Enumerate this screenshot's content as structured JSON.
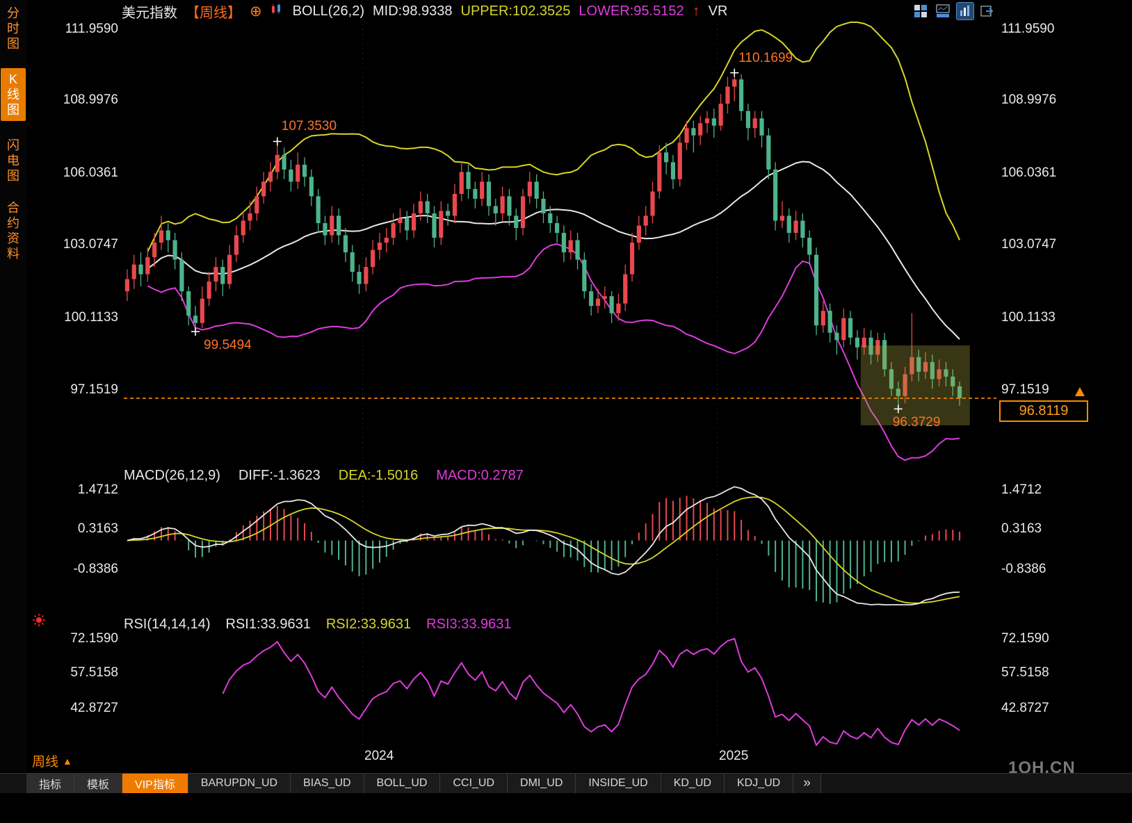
{
  "meta": {
    "watermark": "1QH.CN"
  },
  "icons": {
    "add_indicator": "⊕",
    "trend_up_arrow": "↑",
    "period_triangle": "▲",
    "more_tabs": "»"
  },
  "colors": {
    "up": "#e8484e",
    "down": "#4db38b",
    "boll_upper": "#d6d62a",
    "boll_mid": "#e8e8e8",
    "boll_lower": "#dd3cdd",
    "diff": "#e8e8e8",
    "dea": "#d6d62a",
    "macd_hist_pos": "#e8484e",
    "macd_hist_neg": "#4db38b",
    "rsi3": "#dd3cdd",
    "price_marker": "#ff8a00",
    "annotation": "#ff7426"
  },
  "sidebar": {
    "items": [
      {
        "label": "分时图",
        "active": false
      },
      {
        "label": "K线图",
        "active": true
      },
      {
        "label": "闪电图",
        "active": false
      },
      {
        "label": "合约资料",
        "active": false
      }
    ]
  },
  "header": {
    "symbol": "美元指数",
    "period_tag": "【周线】",
    "indicator": "BOLL(26,2)",
    "mid": "MID:98.9338",
    "upper": "UPPER:102.3525",
    "lower": "LOWER:95.5152",
    "vr": "VR"
  },
  "main_chart": {
    "left_axis": [
      "111.9590",
      "108.9976",
      "106.0361",
      "103.0747",
      "100.1133",
      "97.1519"
    ],
    "right_axis": [
      "111.9590",
      "108.9976",
      "106.0361",
      "103.0747",
      "100.1133",
      "97.1519"
    ],
    "annotations": {
      "last_price": "96.8119"
    },
    "x_labels": [
      "2024",
      "2025"
    ]
  },
  "macd_panel": {
    "title": "MACD(26,12,9)",
    "diff_label": "DIFF:-1.3623",
    "dea_label": "DEA:-1.5016",
    "macd_label": "MACD:0.2787",
    "axis": [
      "1.4712",
      "0.3163",
      "-0.8386"
    ]
  },
  "rsi_panel": {
    "title": "RSI(14,14,14)",
    "rsi1_label": "RSI1:33.9631",
    "rsi2_label": "RSI2:33.9631",
    "rsi3_label": "RSI3:33.9631",
    "axis": [
      "72.1590",
      "57.5158",
      "42.8727"
    ]
  },
  "footer": {
    "period": "周线",
    "tabs": [
      {
        "label": "指标",
        "active": false
      },
      {
        "label": "模板",
        "active": false
      },
      {
        "label": "VIP指标",
        "active": true
      },
      {
        "label": "BARUPDN_UD",
        "active": false
      },
      {
        "label": "BIAS_UD",
        "active": false
      },
      {
        "label": "BOLL_UD",
        "active": false
      },
      {
        "label": "CCI_UD",
        "active": false
      },
      {
        "label": "DMI_UD",
        "active": false
      },
      {
        "label": "INSIDE_UD",
        "active": false
      },
      {
        "label": "KD_UD",
        "active": false
      },
      {
        "label": "KDJ_UD",
        "active": false
      },
      {
        "label": "»",
        "active": false
      }
    ]
  },
  "chart_data": {
    "type": "candlestick",
    "title": "美元指数 周线 (US Dollar Index, weekly)",
    "price_axis": [
      111.959,
      108.9976,
      106.0361,
      103.0747,
      100.1133,
      97.1519
    ],
    "macd_axis": [
      1.4712,
      0.3163,
      -0.8386
    ],
    "rsi_axis": [
      72.159,
      57.5158,
      42.8727
    ],
    "boll": {
      "period": 26,
      "k": 2,
      "mid": 98.9338,
      "upper": 102.3525,
      "lower": 95.5152
    },
    "macd_params": [
      26,
      12,
      9
    ],
    "macd_values": {
      "diff": -1.3623,
      "dea": -1.5016,
      "macd": 0.2787
    },
    "rsi_period": 14,
    "rsi_values": [
      33.9631,
      33.9631,
      33.9631
    ],
    "last_price": 96.8119,
    "x_ticks": [
      {
        "label": "2024",
        "index": 35
      },
      {
        "label": "2025",
        "index": 87
      }
    ],
    "markers": [
      {
        "label": "107.3530",
        "index": 22,
        "price": 107.353,
        "side": "high"
      },
      {
        "label": "110.1699",
        "index": 89,
        "price": 110.1699,
        "side": "high"
      },
      {
        "label": "99.5494",
        "index": 10,
        "price": 99.5494,
        "side": "low"
      },
      {
        "label": "96.3729",
        "index": 113,
        "price": 96.3729,
        "side": "low"
      }
    ],
    "highlight_region": {
      "from_index": 108,
      "to_index": 124,
      "price_top": 98.98,
      "price_bottom": 95.7
    },
    "candles": [
      [
        101.2,
        102.1,
        100.8,
        101.7
      ],
      [
        101.7,
        102.7,
        101.3,
        102.3
      ],
      [
        102.3,
        102.8,
        101.4,
        101.9
      ],
      [
        101.9,
        103.0,
        101.6,
        102.6
      ],
      [
        102.6,
        103.6,
        102.2,
        103.2
      ],
      [
        103.2,
        104.3,
        102.9,
        103.7
      ],
      [
        103.7,
        104.0,
        102.8,
        103.3
      ],
      [
        103.3,
        103.6,
        102.1,
        102.5
      ],
      [
        102.5,
        102.8,
        100.8,
        101.2
      ],
      [
        101.2,
        101.4,
        99.8,
        100.2
      ],
      [
        100.2,
        100.6,
        99.55,
        99.9
      ],
      [
        99.9,
        101.4,
        99.7,
        100.9
      ],
      [
        100.9,
        102.0,
        100.6,
        101.6
      ],
      [
        101.6,
        102.6,
        101.2,
        102.2
      ],
      [
        102.2,
        102.5,
        101.0,
        101.5
      ],
      [
        101.5,
        103.1,
        101.3,
        102.7
      ],
      [
        102.7,
        103.9,
        102.4,
        103.5
      ],
      [
        103.5,
        104.5,
        103.2,
        104.1
      ],
      [
        104.1,
        104.9,
        103.7,
        104.4
      ],
      [
        104.4,
        105.5,
        104.1,
        105.1
      ],
      [
        105.1,
        106.1,
        104.8,
        105.7
      ],
      [
        105.7,
        106.5,
        105.3,
        106.1
      ],
      [
        106.1,
        107.35,
        105.8,
        106.8
      ],
      [
        106.8,
        107.1,
        105.8,
        106.2
      ],
      [
        106.2,
        106.6,
        105.3,
        105.7
      ],
      [
        105.7,
        106.9,
        105.4,
        106.4
      ],
      [
        106.4,
        106.7,
        105.5,
        105.9
      ],
      [
        105.9,
        106.2,
        104.7,
        105.1
      ],
      [
        105.1,
        105.4,
        103.6,
        104.0
      ],
      [
        104.0,
        104.3,
        103.1,
        103.5
      ],
      [
        103.5,
        104.7,
        103.2,
        104.3
      ],
      [
        104.3,
        104.6,
        103.1,
        103.5
      ],
      [
        103.5,
        103.8,
        102.4,
        102.8
      ],
      [
        102.8,
        103.1,
        101.6,
        102.0
      ],
      [
        102.0,
        102.3,
        101.1,
        101.5
      ],
      [
        101.5,
        102.6,
        101.2,
        102.2
      ],
      [
        102.2,
        103.3,
        101.9,
        102.9
      ],
      [
        102.9,
        103.6,
        102.5,
        103.2
      ],
      [
        103.2,
        103.8,
        102.8,
        103.4
      ],
      [
        103.4,
        104.4,
        103.1,
        104.0
      ],
      [
        104.0,
        104.6,
        103.6,
        104.2
      ],
      [
        104.2,
        104.5,
        103.3,
        103.7
      ],
      [
        103.7,
        104.8,
        103.4,
        104.4
      ],
      [
        104.4,
        105.3,
        104.1,
        104.9
      ],
      [
        104.9,
        105.2,
        104.0,
        104.4
      ],
      [
        104.4,
        104.7,
        103.0,
        103.4
      ],
      [
        103.4,
        104.9,
        103.1,
        104.5
      ],
      [
        104.5,
        104.8,
        103.9,
        104.3
      ],
      [
        104.3,
        105.6,
        104.0,
        105.2
      ],
      [
        105.2,
        106.5,
        104.9,
        106.1
      ],
      [
        106.1,
        106.4,
        105.0,
        105.4
      ],
      [
        105.4,
        105.7,
        104.6,
        105.0
      ],
      [
        105.0,
        106.1,
        104.7,
        105.7
      ],
      [
        105.7,
        106.0,
        104.3,
        104.7
      ],
      [
        104.7,
        105.0,
        103.9,
        104.4
      ],
      [
        104.4,
        105.5,
        104.1,
        105.1
      ],
      [
        105.1,
        105.4,
        103.9,
        104.3
      ],
      [
        104.3,
        104.6,
        103.3,
        103.8
      ],
      [
        103.8,
        105.4,
        103.5,
        105.1
      ],
      [
        105.1,
        106.1,
        104.8,
        105.7
      ],
      [
        105.7,
        106.0,
        104.6,
        105.0
      ],
      [
        105.0,
        105.3,
        104.0,
        104.4
      ],
      [
        104.4,
        104.7,
        103.6,
        104.0
      ],
      [
        104.0,
        104.3,
        103.2,
        103.6
      ],
      [
        103.6,
        103.9,
        102.4,
        102.8
      ],
      [
        102.8,
        103.7,
        102.5,
        103.3
      ],
      [
        103.3,
        103.6,
        102.1,
        102.5
      ],
      [
        102.5,
        102.8,
        100.9,
        101.2
      ],
      [
        101.2,
        101.5,
        100.2,
        100.6
      ],
      [
        100.6,
        101.3,
        100.3,
        100.9
      ],
      [
        100.9,
        101.4,
        100.5,
        101.0
      ],
      [
        101.0,
        101.2,
        99.9,
        100.3
      ],
      [
        100.3,
        101.1,
        100.0,
        100.7
      ],
      [
        100.7,
        102.3,
        100.4,
        101.9
      ],
      [
        101.9,
        103.6,
        101.6,
        103.2
      ],
      [
        103.2,
        104.3,
        102.9,
        103.9
      ],
      [
        103.9,
        104.7,
        103.5,
        104.3
      ],
      [
        104.3,
        105.7,
        104.0,
        105.3
      ],
      [
        105.3,
        107.2,
        105.0,
        106.9
      ],
      [
        106.9,
        107.3,
        106.0,
        106.5
      ],
      [
        106.5,
        106.8,
        105.4,
        105.8
      ],
      [
        105.8,
        107.6,
        105.5,
        107.3
      ],
      [
        107.3,
        108.2,
        107.0,
        107.9
      ],
      [
        107.9,
        108.2,
        106.9,
        107.6
      ],
      [
        107.6,
        108.4,
        107.2,
        108.1
      ],
      [
        108.1,
        108.6,
        107.7,
        108.3
      ],
      [
        108.3,
        108.7,
        107.5,
        108.0
      ],
      [
        108.0,
        109.3,
        107.8,
        108.9
      ],
      [
        108.9,
        110.0,
        108.5,
        109.6
      ],
      [
        109.6,
        110.17,
        109.0,
        109.9
      ],
      [
        109.9,
        110.1,
        108.2,
        108.6
      ],
      [
        108.6,
        108.9,
        107.4,
        107.9
      ],
      [
        107.9,
        108.6,
        107.5,
        108.3
      ],
      [
        108.3,
        108.6,
        107.1,
        107.6
      ],
      [
        107.6,
        107.9,
        105.8,
        106.2
      ],
      [
        106.2,
        106.5,
        103.7,
        104.1
      ],
      [
        104.1,
        104.9,
        103.8,
        104.3
      ],
      [
        104.3,
        104.6,
        103.2,
        103.6
      ],
      [
        103.6,
        104.5,
        103.3,
        104.1
      ],
      [
        104.1,
        104.4,
        103.0,
        103.4
      ],
      [
        103.4,
        103.7,
        102.3,
        102.7
      ],
      [
        102.7,
        103.0,
        99.4,
        99.8
      ],
      [
        99.8,
        100.8,
        99.5,
        100.4
      ],
      [
        100.4,
        100.7,
        99.1,
        99.5
      ],
      [
        99.5,
        99.8,
        98.6,
        99.2
      ],
      [
        99.2,
        100.5,
        98.9,
        100.1
      ],
      [
        100.1,
        100.4,
        99.0,
        99.3
      ],
      [
        99.3,
        99.6,
        98.4,
        98.9
      ],
      [
        98.9,
        99.7,
        98.6,
        99.3
      ],
      [
        99.3,
        99.6,
        98.2,
        98.6
      ],
      [
        98.6,
        99.5,
        98.3,
        99.2
      ],
      [
        99.2,
        99.5,
        97.7,
        98.0
      ],
      [
        98.0,
        98.3,
        96.9,
        97.2
      ],
      [
        97.2,
        97.5,
        96.37,
        96.9
      ],
      [
        96.9,
        98.1,
        96.6,
        97.8
      ],
      [
        97.8,
        100.3,
        97.5,
        98.5
      ],
      [
        98.5,
        98.8,
        97.5,
        97.9
      ],
      [
        97.9,
        98.7,
        97.6,
        98.3
      ],
      [
        98.3,
        98.6,
        97.2,
        97.6
      ],
      [
        97.6,
        98.4,
        97.3,
        98.0
      ],
      [
        98.0,
        98.3,
        97.3,
        97.7
      ],
      [
        97.7,
        98.0,
        96.9,
        97.3
      ],
      [
        97.3,
        97.5,
        96.5,
        96.81
      ]
    ]
  }
}
